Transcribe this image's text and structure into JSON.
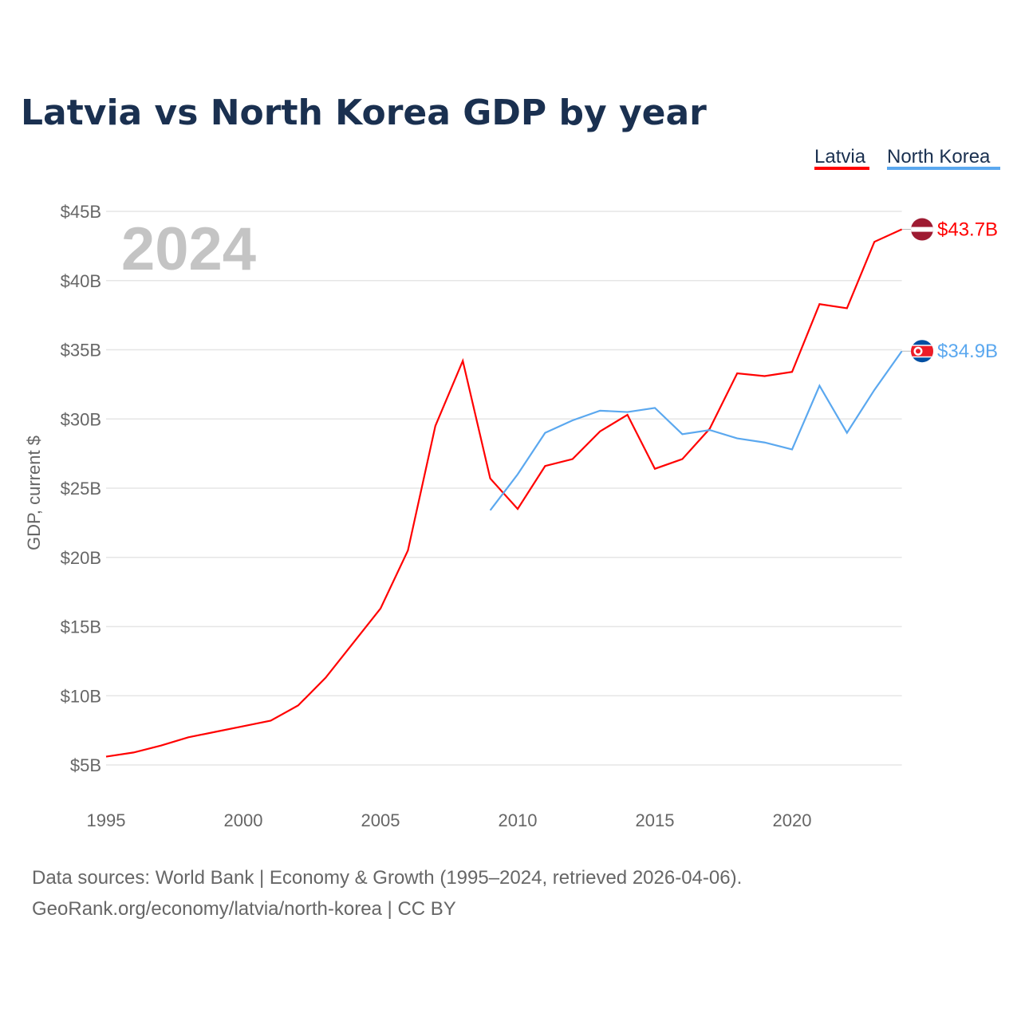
{
  "chart_data": {
    "type": "line",
    "title": "Latvia vs North Korea GDP by year",
    "xlabel": "",
    "ylabel": "GDP, current $",
    "year_label": "2024",
    "xlim": [
      1995,
      2024
    ],
    "ylim": [
      5,
      45
    ],
    "x_ticks": [
      1995,
      2000,
      2005,
      2010,
      2015,
      2020
    ],
    "y_ticks": [
      5,
      10,
      15,
      20,
      25,
      30,
      35,
      40,
      45
    ],
    "y_tick_labels": [
      "$5B",
      "$10B",
      "$15B",
      "$20B",
      "$25B",
      "$30B",
      "$35B",
      "$40B",
      "$45B"
    ],
    "grid": true,
    "legend_position": "top-right",
    "series": [
      {
        "name": "Latvia",
        "color": "#ff0000",
        "end_label": "$43.7B",
        "x": [
          1995,
          1996,
          1997,
          1998,
          1999,
          2000,
          2001,
          2002,
          2003,
          2004,
          2005,
          2006,
          2007,
          2008,
          2009,
          2010,
          2011,
          2012,
          2013,
          2014,
          2015,
          2016,
          2017,
          2018,
          2019,
          2020,
          2021,
          2022,
          2023,
          2024
        ],
        "values": [
          5.6,
          5.9,
          6.4,
          7.0,
          7.4,
          7.8,
          8.2,
          9.3,
          11.3,
          13.8,
          16.3,
          20.5,
          29.5,
          34.2,
          25.7,
          23.5,
          26.6,
          27.1,
          29.1,
          30.3,
          26.4,
          27.1,
          29.3,
          33.3,
          33.1,
          33.4,
          38.3,
          38.0,
          42.8,
          43.7
        ]
      },
      {
        "name": "North Korea",
        "color": "#5ba8ef",
        "end_label": "$34.9B",
        "x": [
          2009,
          2010,
          2011,
          2012,
          2013,
          2014,
          2015,
          2016,
          2017,
          2018,
          2019,
          2020,
          2021,
          2022,
          2023,
          2024
        ],
        "values": [
          23.4,
          26.0,
          29.0,
          29.9,
          30.6,
          30.5,
          30.8,
          28.9,
          29.2,
          28.6,
          28.3,
          27.8,
          32.4,
          29.0,
          32.1,
          34.9
        ]
      }
    ]
  },
  "footer": {
    "line1": "Data sources: World Bank | Economy & Growth (1995–2024, retrieved 2026-04-06).",
    "line2": "GeoRank.org/economy/latvia/north-korea | CC BY"
  }
}
